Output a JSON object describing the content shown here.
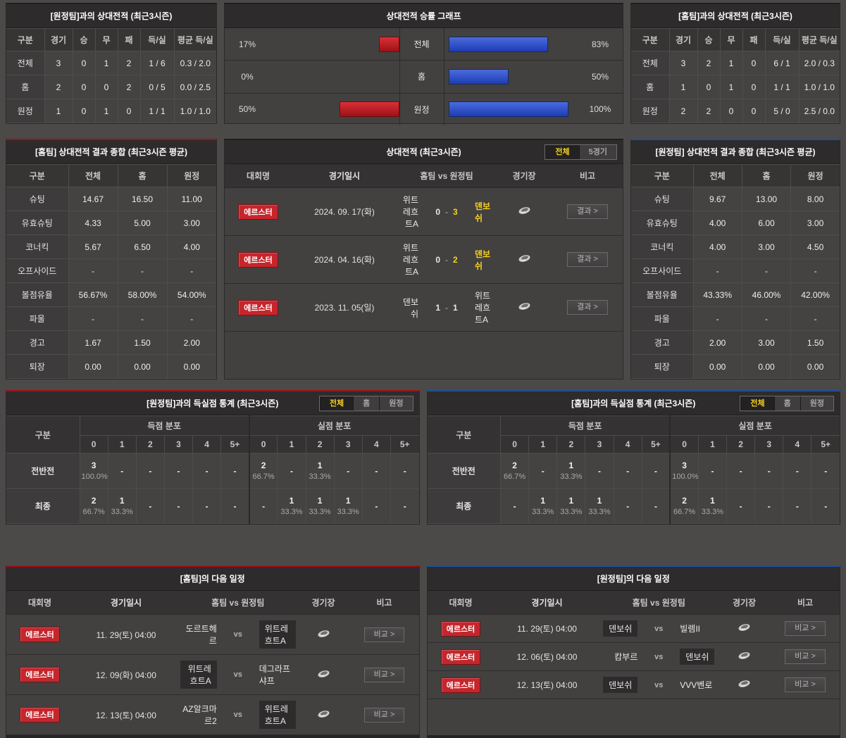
{
  "colors": {
    "accent_red": "#a31015",
    "accent_blue": "#1d4f9e",
    "bar_red": "#c1272d",
    "bar_blue": "#2b52c5",
    "highlight_yellow": "#f7d21e",
    "badge_red": "#c5262c"
  },
  "away_h2h_table": {
    "title": "[원정팀]과의 상대전적 (최근3시즌)",
    "headers": [
      "구분",
      "경기",
      "승",
      "무",
      "패",
      "득/실",
      "평균 득/실"
    ],
    "rows": [
      {
        "label": "전체",
        "values": [
          "3",
          "0",
          "1",
          "2",
          "1 / 6",
          "0.3 / 2.0"
        ]
      },
      {
        "label": "홈",
        "values": [
          "2",
          "0",
          "0",
          "2",
          "0 / 5",
          "0.0 / 2.5"
        ]
      },
      {
        "label": "원정",
        "values": [
          "1",
          "0",
          "1",
          "0",
          "1 / 1",
          "1.0 / 1.0"
        ]
      }
    ]
  },
  "chart": {
    "title": "상대전적 승률 그래프",
    "type": "bar",
    "rows": [
      {
        "label": "전체",
        "left_pct": 17,
        "left_label": "17%",
        "right_pct": 83,
        "right_label": "83%"
      },
      {
        "label": "홈",
        "left_pct": 0,
        "left_label": "0%",
        "right_pct": 50,
        "right_label": "50%"
      },
      {
        "label": "원정",
        "left_pct": 50,
        "left_label": "50%",
        "right_pct": 100,
        "right_label": "100%"
      }
    ]
  },
  "home_h2h_table": {
    "title": "[홈팀]과의 상대전적 (최근3시즌)",
    "headers": [
      "구분",
      "경기",
      "승",
      "무",
      "패",
      "득/실",
      "평균 득/실"
    ],
    "rows": [
      {
        "label": "전체",
        "values": [
          "3",
          "2",
          "1",
          "0",
          "6 / 1",
          "2.0 / 0.3"
        ]
      },
      {
        "label": "홈",
        "values": [
          "1",
          "0",
          "1",
          "0",
          "1 / 1",
          "1.0 / 1.0"
        ]
      },
      {
        "label": "원정",
        "values": [
          "2",
          "2",
          "0",
          "0",
          "5 / 0",
          "2.5 / 0.0"
        ]
      }
    ]
  },
  "home_summary": {
    "title": "[홈팀] 상대전적 결과 종합 (최근3시즌 평균)",
    "headers": [
      "구분",
      "전체",
      "홈",
      "원정"
    ],
    "rows": [
      {
        "label": "슈팅",
        "values": [
          "14.67",
          "16.50",
          "11.00"
        ]
      },
      {
        "label": "유효슈팅",
        "values": [
          "4.33",
          "5.00",
          "3.00"
        ]
      },
      {
        "label": "코너킥",
        "values": [
          "5.67",
          "6.50",
          "4.00"
        ]
      },
      {
        "label": "오프사이드",
        "values": [
          "-",
          "-",
          "-"
        ]
      },
      {
        "label": "볼점유율",
        "values": [
          "56.67%",
          "58.00%",
          "54.00%"
        ]
      },
      {
        "label": "파울",
        "values": [
          "-",
          "-",
          "-"
        ]
      },
      {
        "label": "경고",
        "values": [
          "1.67",
          "1.50",
          "2.00"
        ]
      },
      {
        "label": "퇴장",
        "values": [
          "0.00",
          "0.00",
          "0.00"
        ]
      }
    ]
  },
  "away_summary": {
    "title": "[원정팀] 상대전적 결과 종합 (최근3시즌 평균)",
    "headers": [
      "구분",
      "전체",
      "홈",
      "원정"
    ],
    "rows": [
      {
        "label": "슈팅",
        "values": [
          "9.67",
          "13.00",
          "8.00"
        ]
      },
      {
        "label": "유효슈팅",
        "values": [
          "4.00",
          "6.00",
          "3.00"
        ]
      },
      {
        "label": "코너킥",
        "values": [
          "4.00",
          "3.00",
          "4.50"
        ]
      },
      {
        "label": "오프사이드",
        "values": [
          "-",
          "-",
          "-"
        ]
      },
      {
        "label": "볼점유율",
        "values": [
          "43.33%",
          "46.00%",
          "42.00%"
        ]
      },
      {
        "label": "파울",
        "values": [
          "-",
          "-",
          "-"
        ]
      },
      {
        "label": "경고",
        "values": [
          "2.00",
          "3.00",
          "1.50"
        ]
      },
      {
        "label": "퇴장",
        "values": [
          "0.00",
          "0.00",
          "0.00"
        ]
      }
    ]
  },
  "h2h_matches": {
    "title": "상대전적 (최근3시즌)",
    "tabs": [
      {
        "label": "전체",
        "active": true
      },
      {
        "label": "5경기",
        "active": false
      }
    ],
    "headers": {
      "league": "대회명",
      "date": "경기일시",
      "match": "홈팀  vs  원정팀",
      "stadium": "경기장",
      "note": "비고"
    },
    "button_label": "결과 >",
    "rows": [
      {
        "league": "에르스터",
        "date": "2024. 09. 17(화)",
        "home": "위트레흐트A",
        "home_score": "0",
        "sep": "-",
        "away_score": "3",
        "away": "덴보쉬",
        "home_win": false,
        "away_win": true
      },
      {
        "league": "에르스터",
        "date": "2024. 04. 16(화)",
        "home": "위트레흐트A",
        "home_score": "0",
        "sep": "-",
        "away_score": "2",
        "away": "덴보쉬",
        "home_win": false,
        "away_win": true
      },
      {
        "league": "에르스터",
        "date": "2023. 11. 05(일)",
        "home": "덴보쉬",
        "home_score": "1",
        "sep": "-",
        "away_score": "1",
        "away": "위트레흐트A",
        "home_win": false,
        "away_win": false
      }
    ]
  },
  "away_goal_stats": {
    "title": "[원정팀]과의 득실점 통계 (최근3시즌)",
    "tabs": [
      {
        "label": "전체",
        "active": true
      },
      {
        "label": "홈",
        "active": false
      },
      {
        "label": "원정",
        "active": false
      }
    ],
    "corner_header": "구분",
    "group_headers": [
      "득점 분포",
      "실점 분포"
    ],
    "col_headers": [
      "0",
      "1",
      "2",
      "3",
      "4",
      "5+",
      "0",
      "1",
      "2",
      "3",
      "4",
      "5+"
    ],
    "rows": [
      {
        "label": "전반전",
        "n": [
          "3",
          "-",
          "-",
          "-",
          "-",
          "-",
          "2",
          "-",
          "1",
          "-",
          "-",
          "-"
        ],
        "p": [
          "100.0%",
          "",
          "",
          "",
          "",
          "",
          "66.7%",
          "",
          "33.3%",
          "",
          "",
          ""
        ]
      },
      {
        "label": "최종",
        "n": [
          "2",
          "1",
          "-",
          "-",
          "-",
          "-",
          "-",
          "1",
          "1",
          "1",
          "-",
          "-"
        ],
        "p": [
          "66.7%",
          "33.3%",
          "",
          "",
          "",
          "",
          "",
          "33.3%",
          "33.3%",
          "33.3%",
          "",
          ""
        ]
      }
    ]
  },
  "home_goal_stats": {
    "title": "[홈팀]과의 득실점 통계 (최근3시즌)",
    "tabs": [
      {
        "label": "전체",
        "active": true
      },
      {
        "label": "홈",
        "active": false
      },
      {
        "label": "원정",
        "active": false
      }
    ],
    "corner_header": "구분",
    "group_headers": [
      "득점 분포",
      "실점 분포"
    ],
    "col_headers": [
      "0",
      "1",
      "2",
      "3",
      "4",
      "5+",
      "0",
      "1",
      "2",
      "3",
      "4",
      "5+"
    ],
    "rows": [
      {
        "label": "전반전",
        "n": [
          "2",
          "-",
          "1",
          "-",
          "-",
          "-",
          "3",
          "-",
          "-",
          "-",
          "-",
          "-"
        ],
        "p": [
          "66.7%",
          "",
          "33.3%",
          "",
          "",
          "",
          "100.0%",
          "",
          "",
          "",
          "",
          ""
        ]
      },
      {
        "label": "최종",
        "n": [
          "-",
          "1",
          "1",
          "1",
          "-",
          "-",
          "2",
          "1",
          "-",
          "-",
          "-",
          "-"
        ],
        "p": [
          "",
          "33.3%",
          "33.3%",
          "33.3%",
          "",
          "",
          "66.7%",
          "33.3%",
          "",
          "",
          "",
          ""
        ]
      }
    ]
  },
  "home_schedule": {
    "title": "[홈팀]의 다음 일정",
    "headers": {
      "league": "대회명",
      "date": "경기일시",
      "match": "홈팀  vs  원정팀",
      "stadium": "경기장",
      "note": "비고"
    },
    "vs_label": "vs",
    "button_label": "비교 >",
    "rows": [
      {
        "league": "에르스터",
        "date": "11. 29(토) 04:00",
        "home": "도르트헤르",
        "away": "위트레흐트A",
        "home_hl": false,
        "away_hl": true
      },
      {
        "league": "에르스터",
        "date": "12. 09(화) 04:00",
        "home": "위트레흐트A",
        "away": "데그라프샤프",
        "home_hl": true,
        "away_hl": false
      },
      {
        "league": "에르스터",
        "date": "12. 13(토) 04:00",
        "home": "AZ알크마르2",
        "away": "위트레흐트A",
        "home_hl": false,
        "away_hl": true
      }
    ]
  },
  "away_schedule": {
    "title": "[원정팀]의 다음 일정",
    "headers": {
      "league": "대회명",
      "date": "경기일시",
      "match": "홈팀  vs  원정팀",
      "stadium": "경기장",
      "note": "비고"
    },
    "vs_label": "vs",
    "button_label": "비교 >",
    "rows": [
      {
        "league": "에르스터",
        "date": "11. 29(토) 04:00",
        "home": "덴보쉬",
        "away": "빌렘II",
        "home_hl": true,
        "away_hl": false
      },
      {
        "league": "에르스터",
        "date": "12. 06(토) 04:00",
        "home": "캄부르",
        "away": "덴보쉬",
        "home_hl": false,
        "away_hl": true
      },
      {
        "league": "에르스터",
        "date": "12. 13(토) 04:00",
        "home": "덴보쉬",
        "away": "VVV벤로",
        "home_hl": true,
        "away_hl": false
      }
    ]
  }
}
